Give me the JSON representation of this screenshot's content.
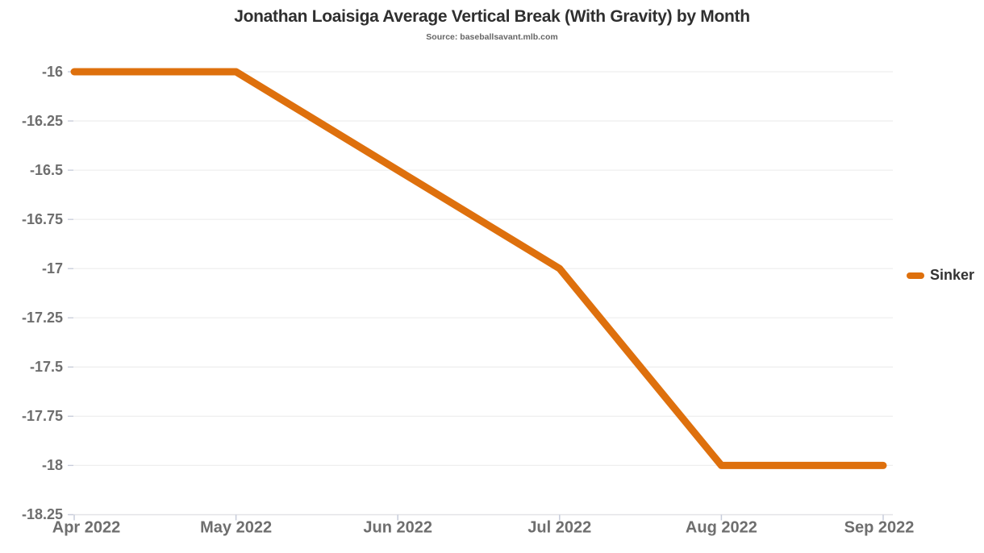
{
  "chart_data": {
    "type": "line",
    "title": "Jonathan Loaisiga Average Vertical Break (With Gravity) by Month",
    "subtitle": "Source: baseballsavant.mlb.com",
    "categories": [
      "Apr 2022",
      "May 2022",
      "Jun 2022",
      "Jul 2022",
      "Aug 2022",
      "Sep 2022"
    ],
    "series": [
      {
        "name": "Sinker",
        "color": "#de700d",
        "values": [
          -16,
          -16,
          -16.5,
          -17,
          -18,
          -18
        ]
      }
    ],
    "xlabel": "",
    "ylabel": "",
    "ylim": [
      -18.25,
      -16
    ],
    "y_ticks": [
      -16,
      -16.25,
      -16.5,
      -16.75,
      -17,
      -17.25,
      -17.5,
      -17.75,
      -18,
      -18.25
    ],
    "y_tick_labels": [
      "-16",
      "-16.25",
      "-16.5",
      "-16.75",
      "-17",
      "-17.25",
      "-17.5",
      "-17.75",
      "-18",
      "-18.25"
    ],
    "grid": "horizontal",
    "legend_position": "right"
  },
  "colors": {
    "line": "#de700d",
    "title_text": "#2f2f2f",
    "subtitle_text": "#666666",
    "axis_text": "#6e6e6e",
    "gridline": "#efefef",
    "axis_line": "#e3e3e7",
    "tick": "#c7ccda",
    "background": "#ffffff"
  }
}
